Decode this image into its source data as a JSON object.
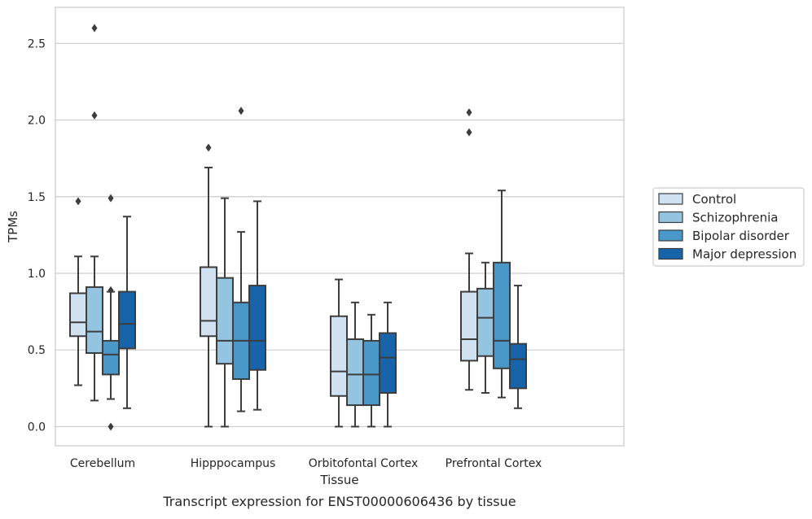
{
  "chart_data": {
    "type": "box",
    "title": "",
    "caption": "Transcript expression for ENST00000606436 by tissue",
    "xlabel": "Tissue",
    "ylabel": "TPMs",
    "ylim": [
      -0.125,
      2.735
    ],
    "yticks": [
      0.0,
      0.5,
      1.0,
      1.5,
      2.0,
      2.5
    ],
    "ytick_labels": [
      "0.0",
      "0.5",
      "1.0",
      "1.5",
      "2.0",
      "2.5"
    ],
    "grid": "horizontal",
    "legend_position": "right",
    "categories": [
      "Cerebellum",
      "Hipppocampus",
      "Orbitofontal Cortex",
      "Prefrontal Cortex"
    ],
    "series": [
      {
        "name": "Control",
        "color": "#d0e1f2",
        "boxes": [
          {
            "whisker_low": 0.27,
            "q1": 0.59,
            "median": 0.68,
            "q3": 0.87,
            "whisker_high": 1.11,
            "outliers": [
              1.47
            ]
          },
          {
            "whisker_low": 0.0,
            "q1": 0.59,
            "median": 0.69,
            "q3": 1.04,
            "whisker_high": 1.69,
            "outliers": [
              1.82
            ]
          },
          {
            "whisker_low": 0.0,
            "q1": 0.2,
            "median": 0.36,
            "q3": 0.72,
            "whisker_high": 0.96,
            "outliers": []
          },
          {
            "whisker_low": 0.24,
            "q1": 0.43,
            "median": 0.57,
            "q3": 0.88,
            "whisker_high": 1.13,
            "outliers": [
              1.92,
              2.05
            ]
          }
        ]
      },
      {
        "name": "Schizophrenia",
        "color": "#94c4df",
        "boxes": [
          {
            "whisker_low": 0.17,
            "q1": 0.48,
            "median": 0.62,
            "q3": 0.91,
            "whisker_high": 1.11,
            "outliers": [
              2.03,
              2.6
            ]
          },
          {
            "whisker_low": 0.0,
            "q1": 0.41,
            "median": 0.56,
            "q3": 0.97,
            "whisker_high": 1.49,
            "outliers": []
          },
          {
            "whisker_low": 0.0,
            "q1": 0.14,
            "median": 0.34,
            "q3": 0.57,
            "whisker_high": 0.81,
            "outliers": []
          },
          {
            "whisker_low": 0.22,
            "q1": 0.46,
            "median": 0.71,
            "q3": 0.9,
            "whisker_high": 1.07,
            "outliers": []
          }
        ]
      },
      {
        "name": "Bipolar disorder",
        "color": "#4a98c9",
        "boxes": [
          {
            "whisker_low": 0.18,
            "q1": 0.34,
            "median": 0.47,
            "q3": 0.56,
            "whisker_high": 0.88,
            "outliers": [
              0.0,
              0.89,
              1.49
            ]
          },
          {
            "whisker_low": 0.1,
            "q1": 0.31,
            "median": 0.56,
            "q3": 0.81,
            "whisker_high": 1.27,
            "outliers": [
              2.06
            ]
          },
          {
            "whisker_low": 0.0,
            "q1": 0.14,
            "median": 0.34,
            "q3": 0.56,
            "whisker_high": 0.73,
            "outliers": []
          },
          {
            "whisker_low": 0.19,
            "q1": 0.38,
            "median": 0.56,
            "q3": 1.07,
            "whisker_high": 1.54,
            "outliers": []
          }
        ]
      },
      {
        "name": "Major depression",
        "color": "#1764ab",
        "boxes": [
          {
            "whisker_low": 0.12,
            "q1": 0.51,
            "median": 0.67,
            "q3": 0.88,
            "whisker_high": 1.37,
            "outliers": []
          },
          {
            "whisker_low": 0.11,
            "q1": 0.37,
            "median": 0.56,
            "q3": 0.92,
            "whisker_high": 1.47,
            "outliers": []
          },
          {
            "whisker_low": 0.0,
            "q1": 0.22,
            "median": 0.45,
            "q3": 0.61,
            "whisker_high": 0.81,
            "outliers": []
          },
          {
            "whisker_low": 0.12,
            "q1": 0.25,
            "median": 0.44,
            "q3": 0.54,
            "whisker_high": 0.92,
            "outliers": []
          }
        ]
      }
    ]
  },
  "style": {
    "line_color": "#3d3d3d",
    "grid_color": "#cccccc",
    "frame_color": "#cccccc",
    "legend_border_color": "#cccccc"
  }
}
